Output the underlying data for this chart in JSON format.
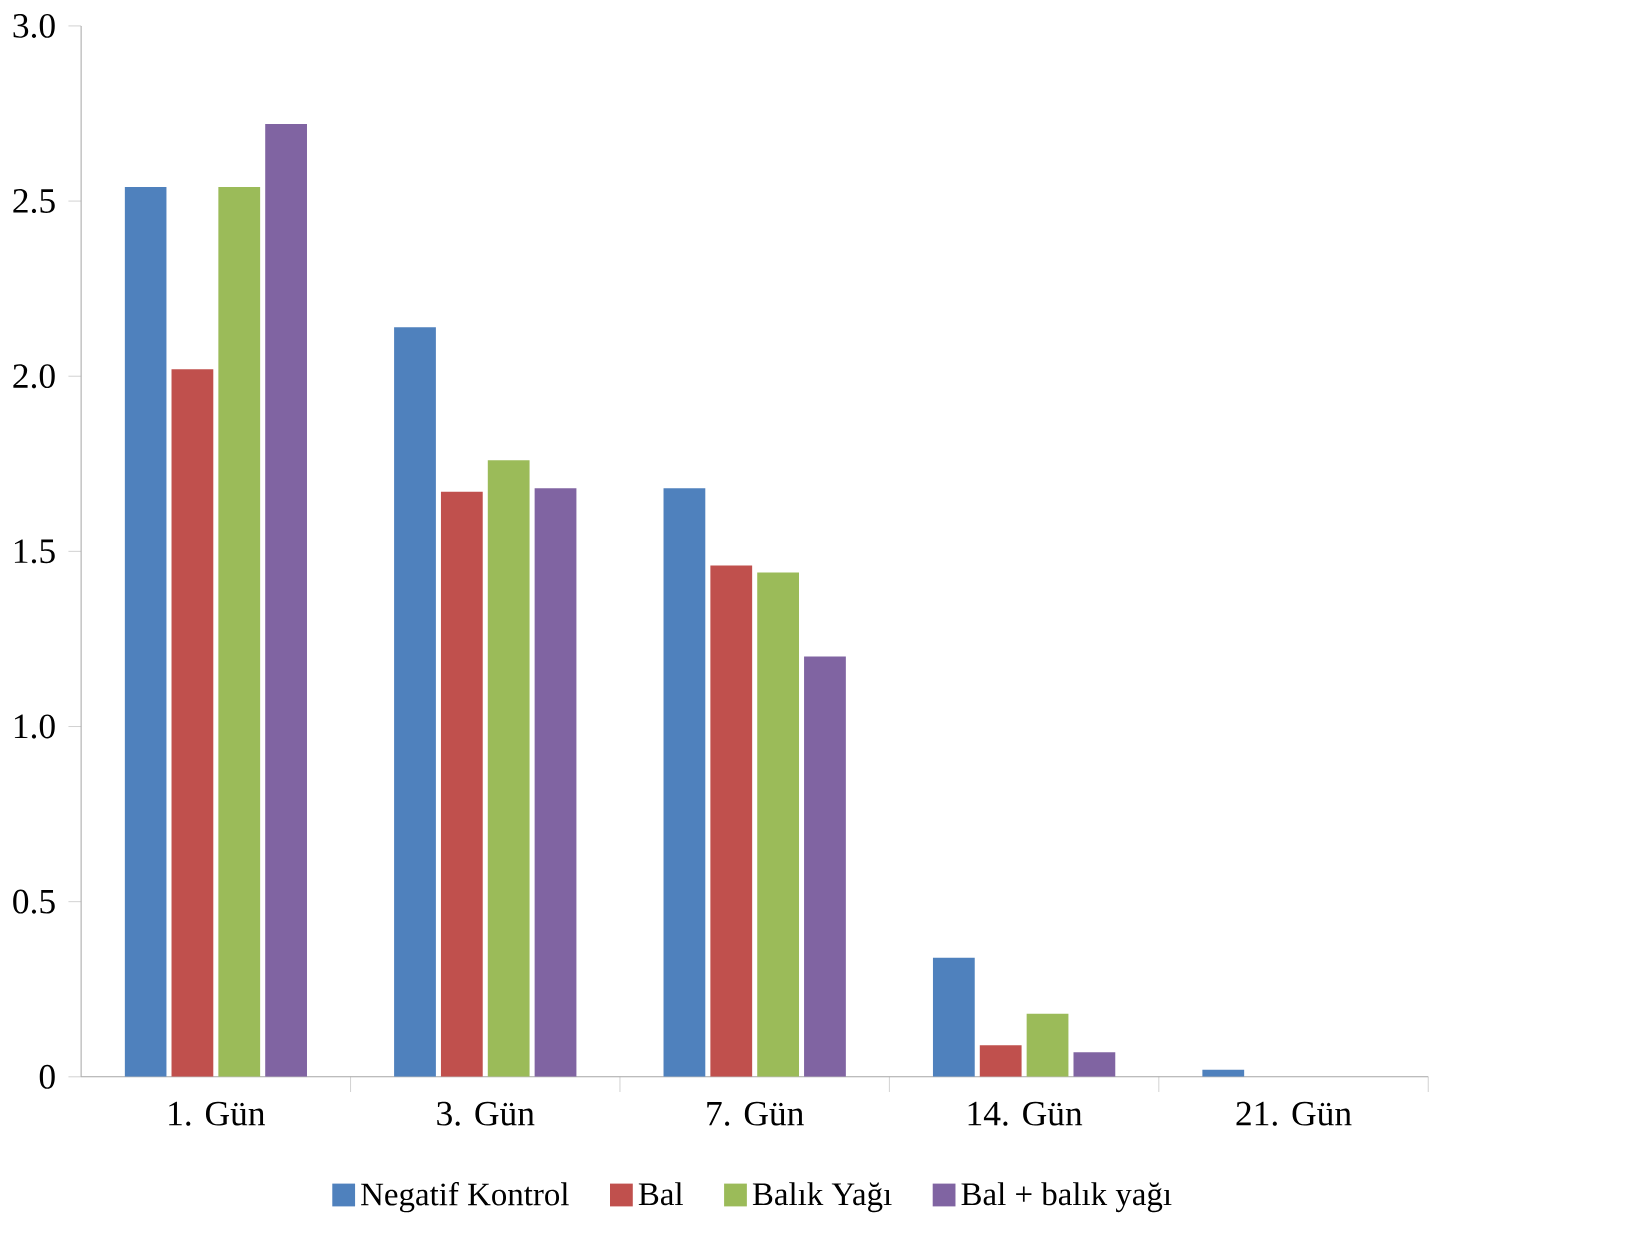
{
  "chart_data": {
    "type": "bar",
    "categories": [
      "1. Gün",
      "3. Gün",
      "7. Gün",
      "14. Gün",
      "21. Gün"
    ],
    "series": [
      {
        "name": "Negatif Kontrol",
        "color": "#4f81bd",
        "values": [
          2.54,
          2.14,
          1.68,
          0.34,
          0.02
        ]
      },
      {
        "name": "Bal",
        "color": "#c0504d",
        "values": [
          2.02,
          1.67,
          1.46,
          0.09,
          0
        ]
      },
      {
        "name": "Balık Yağı",
        "color": "#9bbb59",
        "values": [
          2.54,
          1.76,
          1.44,
          0.18,
          0
        ]
      },
      {
        "name": "Bal + balık yağı",
        "color": "#8064a2",
        "values": [
          2.72,
          1.68,
          1.2,
          0.07,
          0
        ]
      }
    ],
    "ylim": [
      0,
      3
    ],
    "yticks": [
      0,
      0.5,
      {
        "value": 1,
        "label": "1.0"
      },
      1.5,
      {
        "value": 2,
        "label": "2.0"
      },
      2.5,
      {
        "value": 3,
        "label": "3.0"
      }
    ],
    "grid": false,
    "legend": "bottom"
  }
}
